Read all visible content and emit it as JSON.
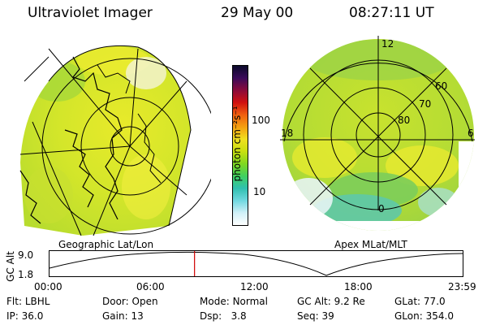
{
  "header": {
    "instrument": "Ultraviolet Imager",
    "date": "29 May 00",
    "time": "08:27:11 UT"
  },
  "left_panel": {
    "caption": "Geographic Lat/Lon"
  },
  "right_panel": {
    "caption": "Apex MLat/MLT",
    "mlt_labels": {
      "top": "12",
      "left": "18",
      "right": "6",
      "bottom": "0"
    },
    "lat_labels": [
      "60",
      "70",
      "80"
    ]
  },
  "colorbar": {
    "unit_label": "photon cm⁻²s⁻¹",
    "ticks": [
      "100",
      "10"
    ],
    "colors": [
      "#0a0a2a",
      "#3a0a5a",
      "#8a0a3a",
      "#d01010",
      "#f06010",
      "#f4a010",
      "#f0e020",
      "#c8e010",
      "#80d820",
      "#40d060",
      "#30c0b0",
      "#70d8e0",
      "#d0f0f8",
      "#ffffff"
    ]
  },
  "altitude_plot": {
    "ylabel": "GC Alt",
    "yticks": [
      "9.0",
      "1.8"
    ],
    "xticks": [
      "00:00",
      "06:00",
      "12:00",
      "18:00",
      "23:59"
    ],
    "current_time_fraction": 0.351
  },
  "status": {
    "row1": [
      {
        "label": "Flt:",
        "value": "LBHL"
      },
      {
        "label": "Door:",
        "value": "Open"
      },
      {
        "label": "Mode:",
        "value": "Normal"
      },
      {
        "label": "GC Alt:",
        "value": "9.2 Re"
      },
      {
        "label": "GLat:",
        "value": "77.0"
      }
    ],
    "row2": [
      {
        "label": "IP:",
        "value": "36.0"
      },
      {
        "label": "Gain:",
        "value": "13"
      },
      {
        "label": "Dsp:",
        "value": "3.8"
      },
      {
        "label": "Seq:",
        "value": "39"
      },
      {
        "label": "GLon:",
        "value": "354.0"
      }
    ]
  }
}
